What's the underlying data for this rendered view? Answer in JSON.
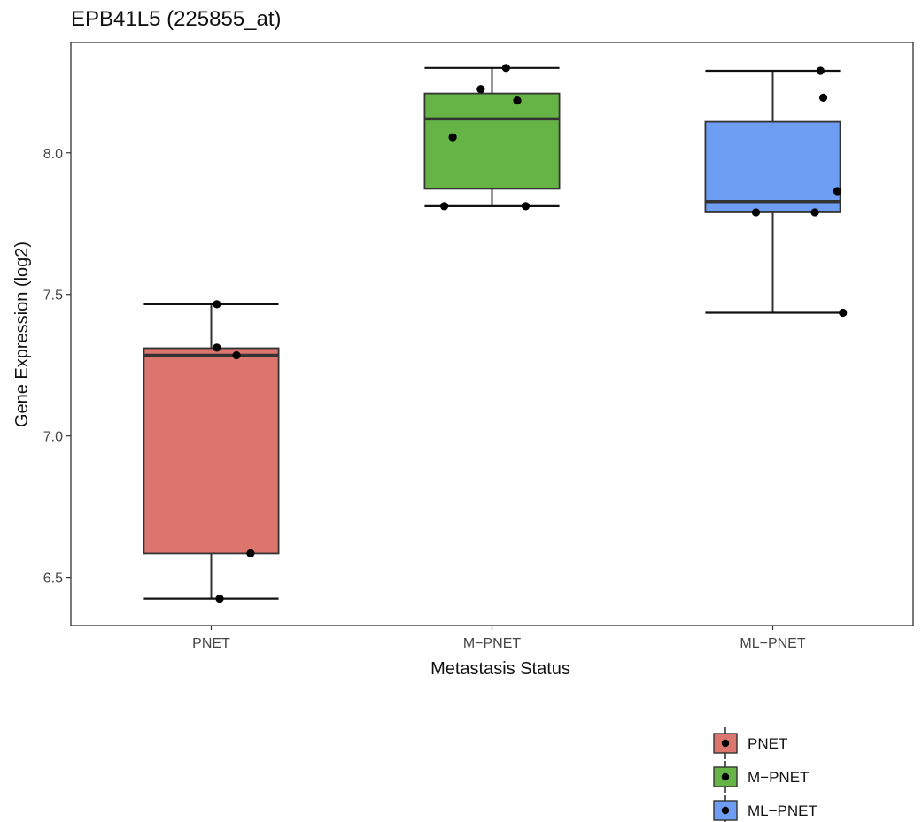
{
  "chart_data": {
    "type": "box",
    "title": "EPB41L5 (225855_at)",
    "xlabel": "Metastasis Status",
    "ylabel": "Gene Expression (log2)",
    "ylim": [
      6.33,
      8.39
    ],
    "yticks": [
      6.5,
      7.0,
      7.5,
      8.0
    ],
    "ytick_labels": [
      "6.5",
      "7.0",
      "7.5",
      "8.0"
    ],
    "categories": [
      "PNET",
      "M−PNET",
      "ML−PNET"
    ],
    "grid": false,
    "legend_position": "bottom-right",
    "series": [
      {
        "name": "PNET",
        "color": "#DC756D",
        "whisker_low": 6.425,
        "q1": 6.585,
        "median": 7.285,
        "q3": 7.31,
        "whisker_high": 7.465,
        "points": [
          {
            "jitter": 0.02,
            "y": 7.465
          },
          {
            "jitter": 0.02,
            "y": 7.312
          },
          {
            "jitter": 0.09,
            "y": 7.285
          },
          {
            "jitter": 0.14,
            "y": 6.585
          },
          {
            "jitter": 0.03,
            "y": 6.425
          }
        ]
      },
      {
        "name": "M−PNET",
        "color": "#66B446",
        "whisker_low": 7.812,
        "q1": 7.873,
        "median": 8.12,
        "q3": 8.21,
        "whisker_high": 8.3,
        "points": [
          {
            "jitter": 0.05,
            "y": 8.3
          },
          {
            "jitter": -0.04,
            "y": 8.225
          },
          {
            "jitter": 0.09,
            "y": 8.185
          },
          {
            "jitter": -0.14,
            "y": 8.055
          },
          {
            "jitter": -0.17,
            "y": 7.812
          },
          {
            "jitter": 0.12,
            "y": 7.812
          }
        ]
      },
      {
        "name": "ML−PNET",
        "color": "#6E9EF4",
        "whisker_low": 7.435,
        "q1": 7.79,
        "median": 7.828,
        "q3": 8.11,
        "whisker_high": 8.29,
        "points": [
          {
            "jitter": 0.17,
            "y": 8.29
          },
          {
            "jitter": 0.18,
            "y": 8.195
          },
          {
            "jitter": 0.23,
            "y": 7.865
          },
          {
            "jitter": -0.06,
            "y": 7.79
          },
          {
            "jitter": 0.15,
            "y": 7.79
          },
          {
            "jitter": 0.25,
            "y": 7.435
          }
        ]
      }
    ]
  }
}
